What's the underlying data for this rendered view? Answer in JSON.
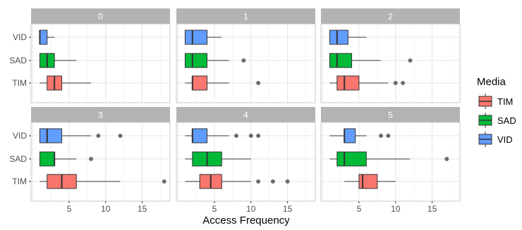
{
  "chart_data": {
    "type": "boxplot",
    "xlabel": "Access Frequency",
    "ylabel": "",
    "xlim": [
      -0.2,
      18.8
    ],
    "xticks": [
      5,
      10,
      15
    ],
    "categories": [
      "VID",
      "SAD",
      "TIM"
    ],
    "grid": true,
    "legend": {
      "title": "Media",
      "position": "right",
      "entries": [
        {
          "name": "TIM",
          "color": "#F8766D"
        },
        {
          "name": "SAD",
          "color": "#00BA38"
        },
        {
          "name": "VID",
          "color": "#619CFF"
        }
      ]
    },
    "facets": [
      {
        "label": "0",
        "boxes": [
          {
            "category": "VID",
            "min": 1,
            "q1": 1,
            "median": 1,
            "q3": 2,
            "max": 3,
            "outliers": []
          },
          {
            "category": "SAD",
            "min": 1,
            "q1": 1,
            "median": 2,
            "q3": 3,
            "max": 6,
            "outliers": []
          },
          {
            "category": "TIM",
            "min": 1,
            "q1": 2,
            "median": 3,
            "q3": 4,
            "max": 8,
            "outliers": []
          }
        ]
      },
      {
        "label": "1",
        "boxes": [
          {
            "category": "VID",
            "min": 1,
            "q1": 1,
            "median": 2,
            "q3": 4,
            "max": 6,
            "outliers": []
          },
          {
            "category": "SAD",
            "min": 1,
            "q1": 1,
            "median": 2,
            "q3": 4,
            "max": 7,
            "outliers": [
              9
            ]
          },
          {
            "category": "TIM",
            "min": 1,
            "q1": 2,
            "median": 2,
            "q3": 4,
            "max": 7,
            "outliers": [
              11
            ]
          }
        ]
      },
      {
        "label": "2",
        "boxes": [
          {
            "category": "VID",
            "min": 1,
            "q1": 1,
            "median": 2,
            "q3": 3.5,
            "max": 6,
            "outliers": []
          },
          {
            "category": "SAD",
            "min": 1,
            "q1": 1,
            "median": 2,
            "q3": 4,
            "max": 8,
            "outliers": [
              12
            ]
          },
          {
            "category": "TIM",
            "min": 1,
            "q1": 2,
            "median": 3,
            "q3": 5,
            "max": 9,
            "outliers": [
              10,
              11
            ]
          }
        ]
      },
      {
        "label": "3",
        "boxes": [
          {
            "category": "VID",
            "min": 1,
            "q1": 1,
            "median": 2,
            "q3": 4,
            "max": 8,
            "outliers": [
              9,
              12
            ]
          },
          {
            "category": "SAD",
            "min": 1,
            "q1": 1,
            "median": 3,
            "q3": 3,
            "max": 6,
            "outliers": [
              8
            ]
          },
          {
            "category": "TIM",
            "min": 1,
            "q1": 2,
            "median": 4,
            "q3": 6,
            "max": 12,
            "outliers": [
              18
            ]
          }
        ]
      },
      {
        "label": "4",
        "boxes": [
          {
            "category": "VID",
            "min": 1,
            "q1": 2,
            "median": 2,
            "q3": 4,
            "max": 7,
            "outliers": [
              8,
              10,
              11
            ]
          },
          {
            "category": "SAD",
            "min": 1,
            "q1": 2,
            "median": 4,
            "q3": 6,
            "max": 10,
            "outliers": []
          },
          {
            "category": "TIM",
            "min": 1,
            "q1": 3,
            "median": 4.5,
            "q3": 6,
            "max": 10,
            "outliers": [
              11,
              13,
              15
            ]
          }
        ]
      },
      {
        "label": "5",
        "boxes": [
          {
            "category": "VID",
            "min": 1,
            "q1": 3,
            "median": 3,
            "q3": 4.5,
            "max": 6,
            "outliers": [
              8,
              9
            ]
          },
          {
            "category": "SAD",
            "min": 1,
            "q1": 2,
            "median": 3,
            "q3": 6,
            "max": 12,
            "outliers": [
              17
            ]
          },
          {
            "category": "TIM",
            "min": 3,
            "q1": 5,
            "median": 5.5,
            "q3": 7.5,
            "max": 10,
            "outliers": []
          }
        ]
      }
    ]
  }
}
